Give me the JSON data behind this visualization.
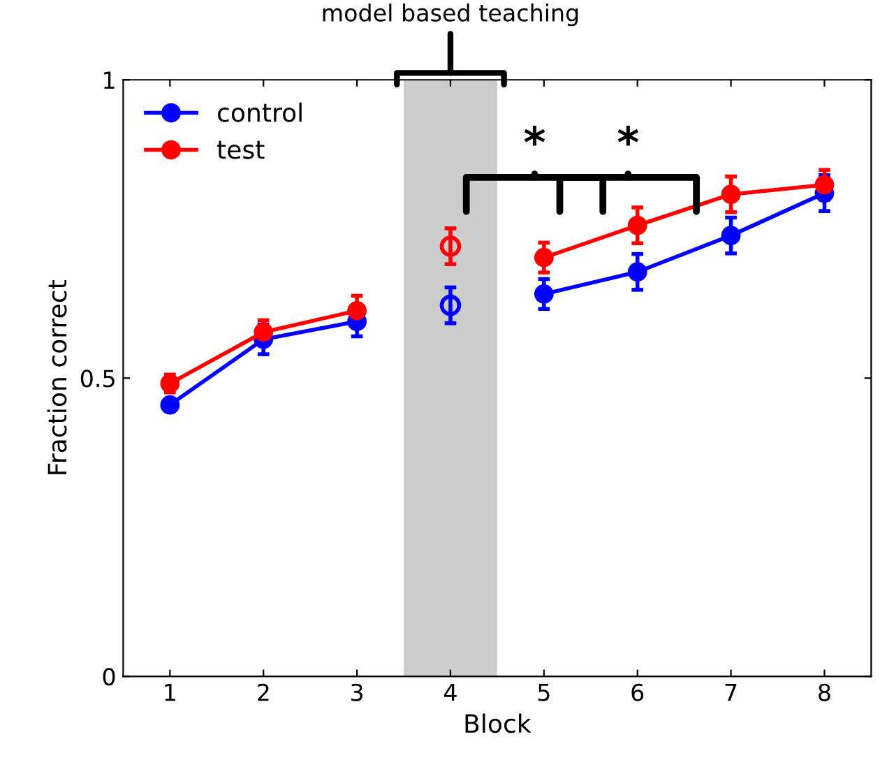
{
  "chart_data": {
    "type": "line",
    "xlabel": "Block",
    "ylabel": "Fraction correct",
    "x": [
      1,
      2,
      3,
      4,
      5,
      6,
      7,
      8
    ],
    "xlim": [
      0.5,
      8.5
    ],
    "xticks": [
      1,
      2,
      3,
      4,
      5,
      6,
      7,
      8
    ],
    "ylim": [
      0,
      1
    ],
    "yticks": [
      0,
      0.5,
      1
    ],
    "series": [
      {
        "name": "control",
        "color": "#0000ff",
        "values": [
          0.455,
          0.565,
          0.595,
          null,
          0.641,
          0.678,
          0.739,
          0.81
        ],
        "errors": [
          0.01,
          0.025,
          0.025,
          null,
          0.025,
          0.03,
          0.03,
          0.03
        ]
      },
      {
        "name": "test",
        "color": "#ff0000",
        "values": [
          0.491,
          0.577,
          0.613,
          null,
          0.702,
          0.756,
          0.808,
          0.824
        ],
        "errors": [
          0.015,
          0.02,
          0.025,
          null,
          0.025,
          0.03,
          0.03,
          0.025
        ]
      },
      {
        "type": "scatter",
        "color": "#0000ff",
        "x": [
          4
        ],
        "values": [
          0.622
        ],
        "errors": [
          0.03
        ]
      },
      {
        "type": "scatter",
        "color": "#ff0000",
        "x": [
          4
        ],
        "values": [
          0.721
        ],
        "errors": [
          0.03
        ]
      }
    ],
    "bands": [
      {
        "axis": "x",
        "from": 3.5,
        "to": 4.5,
        "label": "model based teaching",
        "color": "#cccccc"
      }
    ],
    "annotations": [
      "*",
      "*"
    ],
    "marker": "circle",
    "legend": "top left",
    "grid": false
  }
}
